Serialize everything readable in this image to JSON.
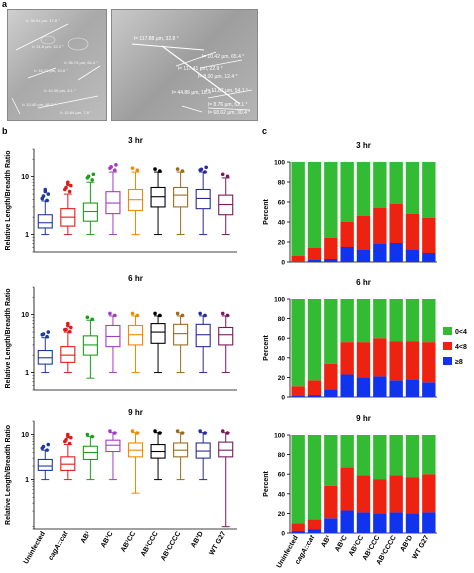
{
  "panel_labels": {
    "a": "a",
    "b": "b",
    "c": "c"
  },
  "micrographs": {
    "left_labels": [
      "l= 30.91 µm, 17.8 °",
      "l= 21.8 µm, 12.3 °",
      "l= 16.71 µm, 10.8 °",
      "l= 36.74 µm, 64.4 °",
      "l= 10.38 µm, 8.1 °",
      "l= 10.40 µm, 66.2 °",
      "l= 10.64 µm, 7.8 °"
    ],
    "right_labels": [
      "l= 117.88 µm, 32.8 °",
      "l= 10.42 µm, 65.4 °",
      "l= 117.41 µm, 22.9 °",
      "l= 8.00 µm, 12.4 °",
      "l= 44.86 µm, 18.4 °",
      "l= 11.87 µm, 54.1 °",
      "l= 8.76 µm, 62.1 °",
      "l= 68.62 µm, 30.4 °"
    ]
  },
  "colors": {
    "Uninfected": "#1f3a9e",
    "cagA::cat": "#e11a1a",
    "AB1": "#1d9e1d",
    "AB1C": "#a23cc4",
    "AB1CC": "#f08a00",
    "AB1CCC": "#000000",
    "AB1CCCC": "#9c6a1e",
    "AB1D": "#2a2a9c",
    "WT G27": "#7a1a5a",
    "green": "#33bb33",
    "red": "#ee2211",
    "blue": "#1133ee"
  },
  "x_labels": [
    "Uninfected",
    "cagA::cat",
    "AB¹",
    "AB¹C",
    "AB¹CC",
    "AB¹CCC",
    "AB¹CCCC",
    "AB¹D",
    "WT G27"
  ],
  "chart_data": [
    {
      "type": "box",
      "title": "3 hr",
      "ylabel": "Relative Length/Breadth Ratio",
      "yscale": "log",
      "ylim": [
        0.5,
        30
      ],
      "yticks": [
        1,
        10
      ],
      "categories": [
        "Uninfected",
        "cagA::cat",
        "AB¹",
        "AB¹C",
        "AB¹CC",
        "AB¹CCC",
        "AB¹CCCC",
        "AB¹D",
        "WT G27"
      ],
      "boxes": [
        {
          "min": 1.0,
          "q1": 1.3,
          "median": 1.6,
          "q3": 2.2,
          "max": 3.8,
          "outliers": [
            4.2,
            5.0,
            6.0
          ]
        },
        {
          "min": 1.0,
          "q1": 1.4,
          "median": 2.0,
          "q3": 2.8,
          "max": 5.0,
          "outliers": [
            6.0,
            7.0,
            8.0
          ]
        },
        {
          "min": 1.0,
          "q1": 1.7,
          "median": 2.5,
          "q3": 3.5,
          "max": 8.0,
          "outliers": [
            9.5,
            11.0
          ]
        },
        {
          "min": 1.0,
          "q1": 2.3,
          "median": 3.5,
          "q3": 5.5,
          "max": 12.0,
          "outliers": [
            14.0,
            16.0
          ]
        },
        {
          "min": 1.0,
          "q1": 2.6,
          "median": 4.0,
          "q3": 6.0,
          "max": 12.0,
          "outliers": [
            14.0
          ]
        },
        {
          "min": 1.0,
          "q1": 3.0,
          "median": 4.5,
          "q3": 6.5,
          "max": 12.0,
          "outliers": [
            13.5
          ]
        },
        {
          "min": 1.0,
          "q1": 3.0,
          "median": 4.8,
          "q3": 6.5,
          "max": 12.0,
          "outliers": [
            13.5
          ]
        },
        {
          "min": 1.0,
          "q1": 2.8,
          "median": 4.2,
          "q3": 6.0,
          "max": 12.0,
          "outliers": [
            13.0,
            14.5
          ]
        },
        {
          "min": 1.0,
          "q1": 2.2,
          "median": 3.3,
          "q3": 4.8,
          "max": 9.5,
          "outliers": [
            11.0
          ]
        }
      ]
    },
    {
      "type": "box",
      "title": "6 hr",
      "ylabel": "Relative Length/Breadth Ratio",
      "yscale": "log",
      "ylim": [
        0.5,
        30
      ],
      "yticks": [
        1,
        10
      ],
      "categories": [
        "Uninfected",
        "cagA::cat",
        "AB¹",
        "AB¹C",
        "AB¹CC",
        "AB¹CCC",
        "AB¹CCCC",
        "AB¹D",
        "WT G27"
      ],
      "boxes": [
        {
          "min": 1.0,
          "q1": 1.4,
          "median": 1.8,
          "q3": 2.4,
          "max": 4.0,
          "outliers": [
            4.5,
            5.0
          ]
        },
        {
          "min": 1.0,
          "q1": 1.5,
          "median": 2.0,
          "q3": 2.8,
          "max": 5.0,
          "outliers": [
            5.5,
            6.0,
            7.0
          ]
        },
        {
          "min": 0.8,
          "q1": 2.0,
          "median": 3.0,
          "q3": 4.3,
          "max": 8.0,
          "outliers": [
            9.0
          ]
        },
        {
          "min": 1.0,
          "q1": 2.8,
          "median": 4.2,
          "q3": 6.5,
          "max": 9.5,
          "outliers": [
            10.5
          ]
        },
        {
          "min": 1.0,
          "q1": 3.0,
          "median": 4.5,
          "q3": 6.5,
          "max": 9.5,
          "outliers": [
            10.5
          ]
        },
        {
          "min": 1.0,
          "q1": 3.2,
          "median": 5.0,
          "q3": 7.0,
          "max": 9.5,
          "outliers": [
            10.5
          ]
        },
        {
          "min": 1.0,
          "q1": 3.0,
          "median": 4.7,
          "q3": 6.8,
          "max": 9.5,
          "outliers": [
            10.5
          ]
        },
        {
          "min": 1.0,
          "q1": 2.8,
          "median": 4.5,
          "q3": 6.8,
          "max": 9.5,
          "outliers": [
            10.5
          ]
        },
        {
          "min": 1.0,
          "q1": 3.0,
          "median": 4.5,
          "q3": 6.0,
          "max": 9.5,
          "outliers": [
            10.5
          ]
        }
      ]
    },
    {
      "type": "box",
      "title": "9 hr",
      "ylabel": "Relative Length/Breadth Ratio",
      "yscale": "log",
      "ylim": [
        0.08,
        20
      ],
      "yticks": [
        1,
        10
      ],
      "categories": [
        "Uninfected",
        "cagA::cat",
        "AB¹",
        "AB¹C",
        "AB¹CC",
        "AB¹CCC",
        "AB¹CCCC",
        "AB¹D",
        "WT G27"
      ],
      "boxes": [
        {
          "min": 1.0,
          "q1": 1.6,
          "median": 2.0,
          "q3": 2.8,
          "max": 4.5,
          "outliers": [
            5.0,
            6.0
          ]
        },
        {
          "min": 1.0,
          "q1": 1.6,
          "median": 2.2,
          "q3": 3.2,
          "max": 6.0,
          "outliers": [
            7.0,
            8.5,
            10.0
          ]
        },
        {
          "min": 1.0,
          "q1": 2.8,
          "median": 4.0,
          "q3": 5.5,
          "max": 9.0,
          "outliers": [
            10.0
          ]
        },
        {
          "min": 1.0,
          "q1": 4.2,
          "median": 5.8,
          "q3": 7.5,
          "max": 11.0,
          "outliers": [
            12.0
          ]
        },
        {
          "min": 0.5,
          "q1": 3.2,
          "median": 4.5,
          "q3": 6.5,
          "max": 11.0,
          "outliers": [
            12.0
          ]
        },
        {
          "min": 1.0,
          "q1": 3.0,
          "median": 4.2,
          "q3": 6.0,
          "max": 11.0,
          "outliers": [
            12.0
          ]
        },
        {
          "min": 1.0,
          "q1": 3.2,
          "median": 4.5,
          "q3": 6.5,
          "max": 11.0,
          "outliers": [
            12.0
          ]
        },
        {
          "min": 1.0,
          "q1": 3.0,
          "median": 4.3,
          "q3": 6.5,
          "max": 11.0,
          "outliers": [
            12.0
          ]
        },
        {
          "min": 0.09,
          "q1": 3.2,
          "median": 4.5,
          "q3": 6.8,
          "max": 11.0,
          "outliers": [
            12.0
          ]
        }
      ]
    },
    {
      "type": "stacked-bar",
      "title": "3 hr",
      "ylabel": "Percent",
      "ylim": [
        0,
        100
      ],
      "yticks": [
        0,
        20,
        40,
        60,
        80,
        100
      ],
      "categories": [
        "Uninfected",
        "cagA::cat",
        "AB¹",
        "AB¹C",
        "AB¹CC",
        "AB¹CCC",
        "AB¹CCCC",
        "AB¹D",
        "WT G27"
      ],
      "series": [
        {
          "name": "≥8",
          "values": [
            0,
            2,
            3,
            15,
            12,
            18,
            19,
            12,
            9
          ]
        },
        {
          "name": "4<8",
          "values": [
            6,
            12,
            21,
            25,
            34,
            36,
            39,
            36,
            35
          ]
        },
        {
          "name": "0<4",
          "values": [
            94,
            86,
            76,
            60,
            54,
            46,
            42,
            52,
            56
          ]
        }
      ]
    },
    {
      "type": "stacked-bar",
      "title": "6 hr",
      "ylabel": "Percent",
      "ylim": [
        0,
        100
      ],
      "yticks": [
        0,
        20,
        40,
        60,
        80,
        100
      ],
      "categories": [
        "Uninfected",
        "cagA::cat",
        "AB¹",
        "AB¹C",
        "AB¹CC",
        "AB¹CCC",
        "AB¹CCCC",
        "AB¹D",
        "WT G27"
      ],
      "series": [
        {
          "name": "≥8",
          "values": [
            1,
            2,
            8,
            23,
            20,
            21,
            17,
            18,
            15
          ]
        },
        {
          "name": "4<8",
          "values": [
            10,
            15,
            26,
            33,
            36,
            39,
            40,
            39,
            41
          ]
        },
        {
          "name": "0<4",
          "values": [
            89,
            83,
            66,
            44,
            44,
            40,
            43,
            43,
            44
          ]
        }
      ]
    },
    {
      "type": "stacked-bar",
      "title": "9 hr",
      "ylabel": "Percent",
      "ylim": [
        0,
        100
      ],
      "yticks": [
        0,
        20,
        40,
        60,
        80,
        100
      ],
      "categories": [
        "Uninfected",
        "cagA::cat",
        "AB¹",
        "AB¹C",
        "AB¹CC",
        "AB¹CCC",
        "AB¹CCCC",
        "AB¹D",
        "WT G27"
      ],
      "series": [
        {
          "name": "≥8",
          "values": [
            2,
            4,
            15,
            23,
            21,
            20,
            21,
            20,
            21
          ]
        },
        {
          "name": "4<8",
          "values": [
            8,
            10,
            33,
            44,
            38,
            35,
            38,
            37,
            39
          ]
        },
        {
          "name": "0<4",
          "values": [
            90,
            86,
            52,
            33,
            41,
            45,
            41,
            43,
            40
          ]
        }
      ]
    }
  ],
  "legend": [
    {
      "label": "0<4",
      "color": "#33bb33"
    },
    {
      "label": "4<8",
      "color": "#ee2211"
    },
    {
      "label": "≥8",
      "color": "#1133ee"
    }
  ]
}
